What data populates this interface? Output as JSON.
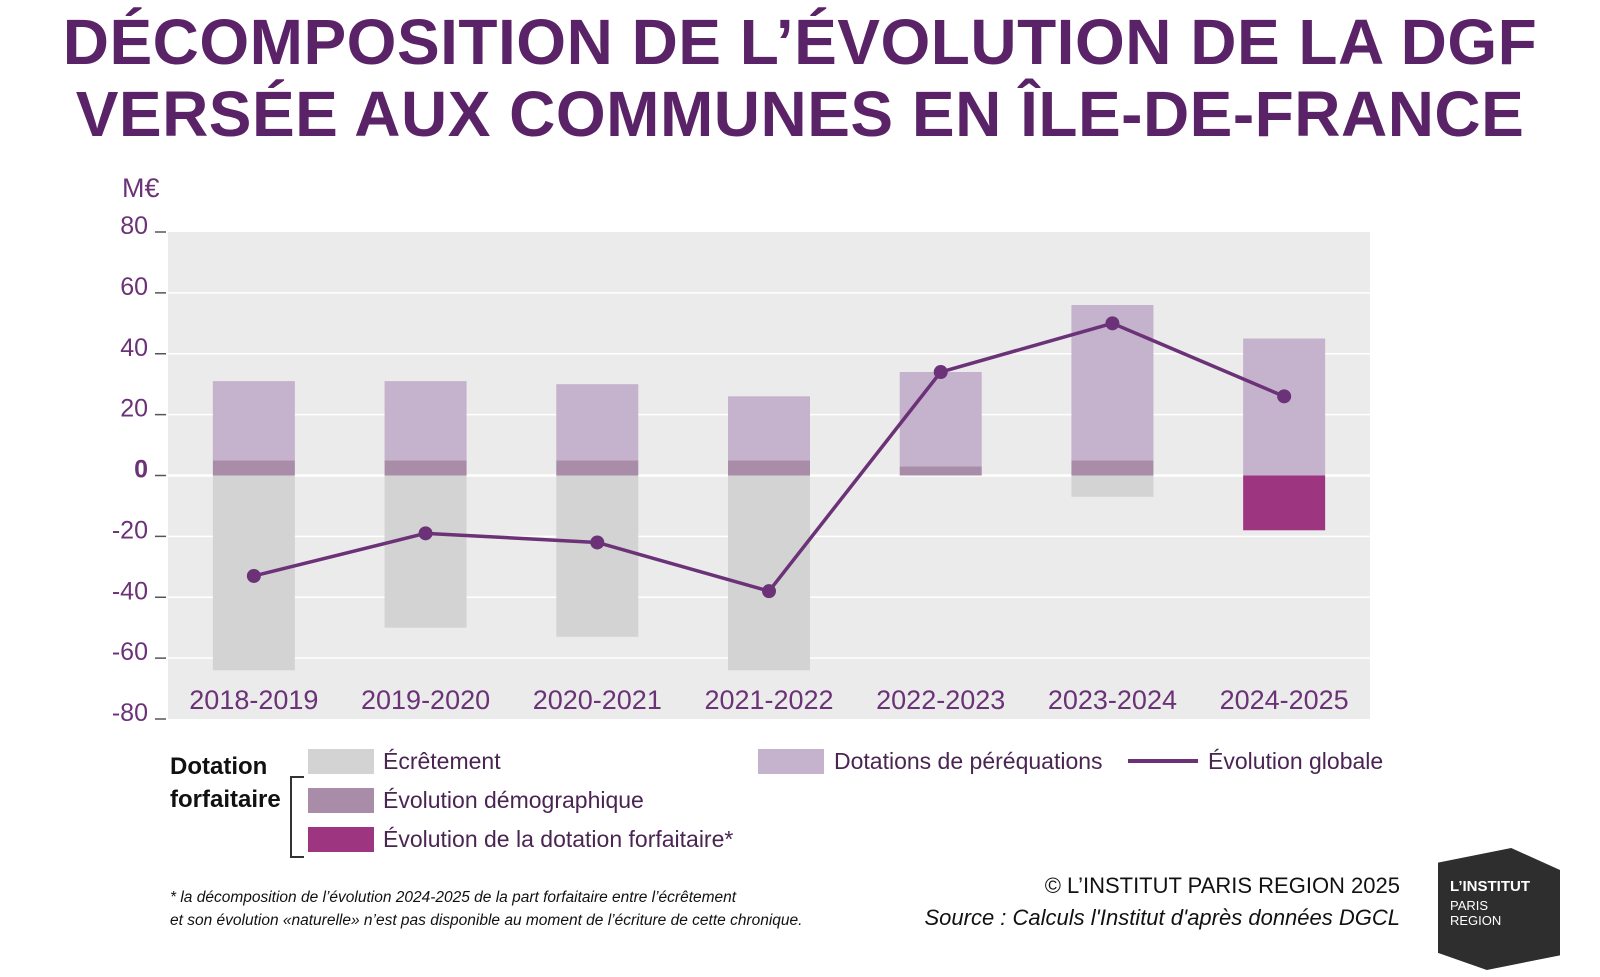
{
  "title_line1": "DÉCOMPOSITION DE L’ÉVOLUTION DE LA DGF",
  "title_line2": "VERSÉE AUX COMMUNES EN ÎLE-DE-FRANCE",
  "chart_data": {
    "type": "bar",
    "unit_label": "M€",
    "ylim": [
      -80,
      80
    ],
    "yticks": [
      80,
      60,
      40,
      20,
      0,
      -20,
      -40,
      -60,
      -80
    ],
    "grid": true,
    "categories": [
      "2018-2019",
      "2019-2020",
      "2020-2021",
      "2021-2022",
      "2022-2023",
      "2023-2024",
      "2024-2025"
    ],
    "series": [
      {
        "name": "Écrêtement",
        "color": "#d3d3d3",
        "values": [
          -64,
          -50,
          -53,
          -64,
          0,
          -7,
          0
        ]
      },
      {
        "name": "Évolution démographique",
        "color": "#a88ca8",
        "values": [
          5,
          5,
          5,
          5,
          3,
          5,
          0
        ]
      },
      {
        "name": "Évolution de la dotation forfaitaire*",
        "color": "#9e3580",
        "values": [
          0,
          0,
          0,
          0,
          0,
          0,
          -18
        ]
      },
      {
        "name": "Dotations de péréquations",
        "color": "#c5b2cc",
        "values": [
          26,
          26,
          25,
          21,
          31,
          51,
          45
        ]
      },
      {
        "name": "Évolution globale",
        "type": "line",
        "color": "#6b3278",
        "values": [
          -33,
          -19,
          -22,
          -38,
          34,
          50,
          26
        ]
      }
    ]
  },
  "legend": {
    "group_line1": "Dotation",
    "group_line2": "forfaitaire",
    "ecretement": "Écrêtement",
    "demographique": "Évolution démographique",
    "dotation": "Évolution de la dotation forfaitaire*",
    "perequations": "Dotations de péréquations",
    "globale": "Évolution globale"
  },
  "footnote_line1": "* la décomposition de l’évolution 2024-2025 de la part forfaitaire entre l’écrêtement",
  "footnote_line2": "et son évolution «naturelle» n’est pas disponible au moment de l’écriture de cette chronique.",
  "credit": "© L’INSTITUT PARIS REGION 2025",
  "source": "Source : Calculs l'Institut d'après données DGCL",
  "logo": {
    "line1": "L’INSTITUT",
    "line2": "PARIS",
    "line3": "REGION"
  }
}
